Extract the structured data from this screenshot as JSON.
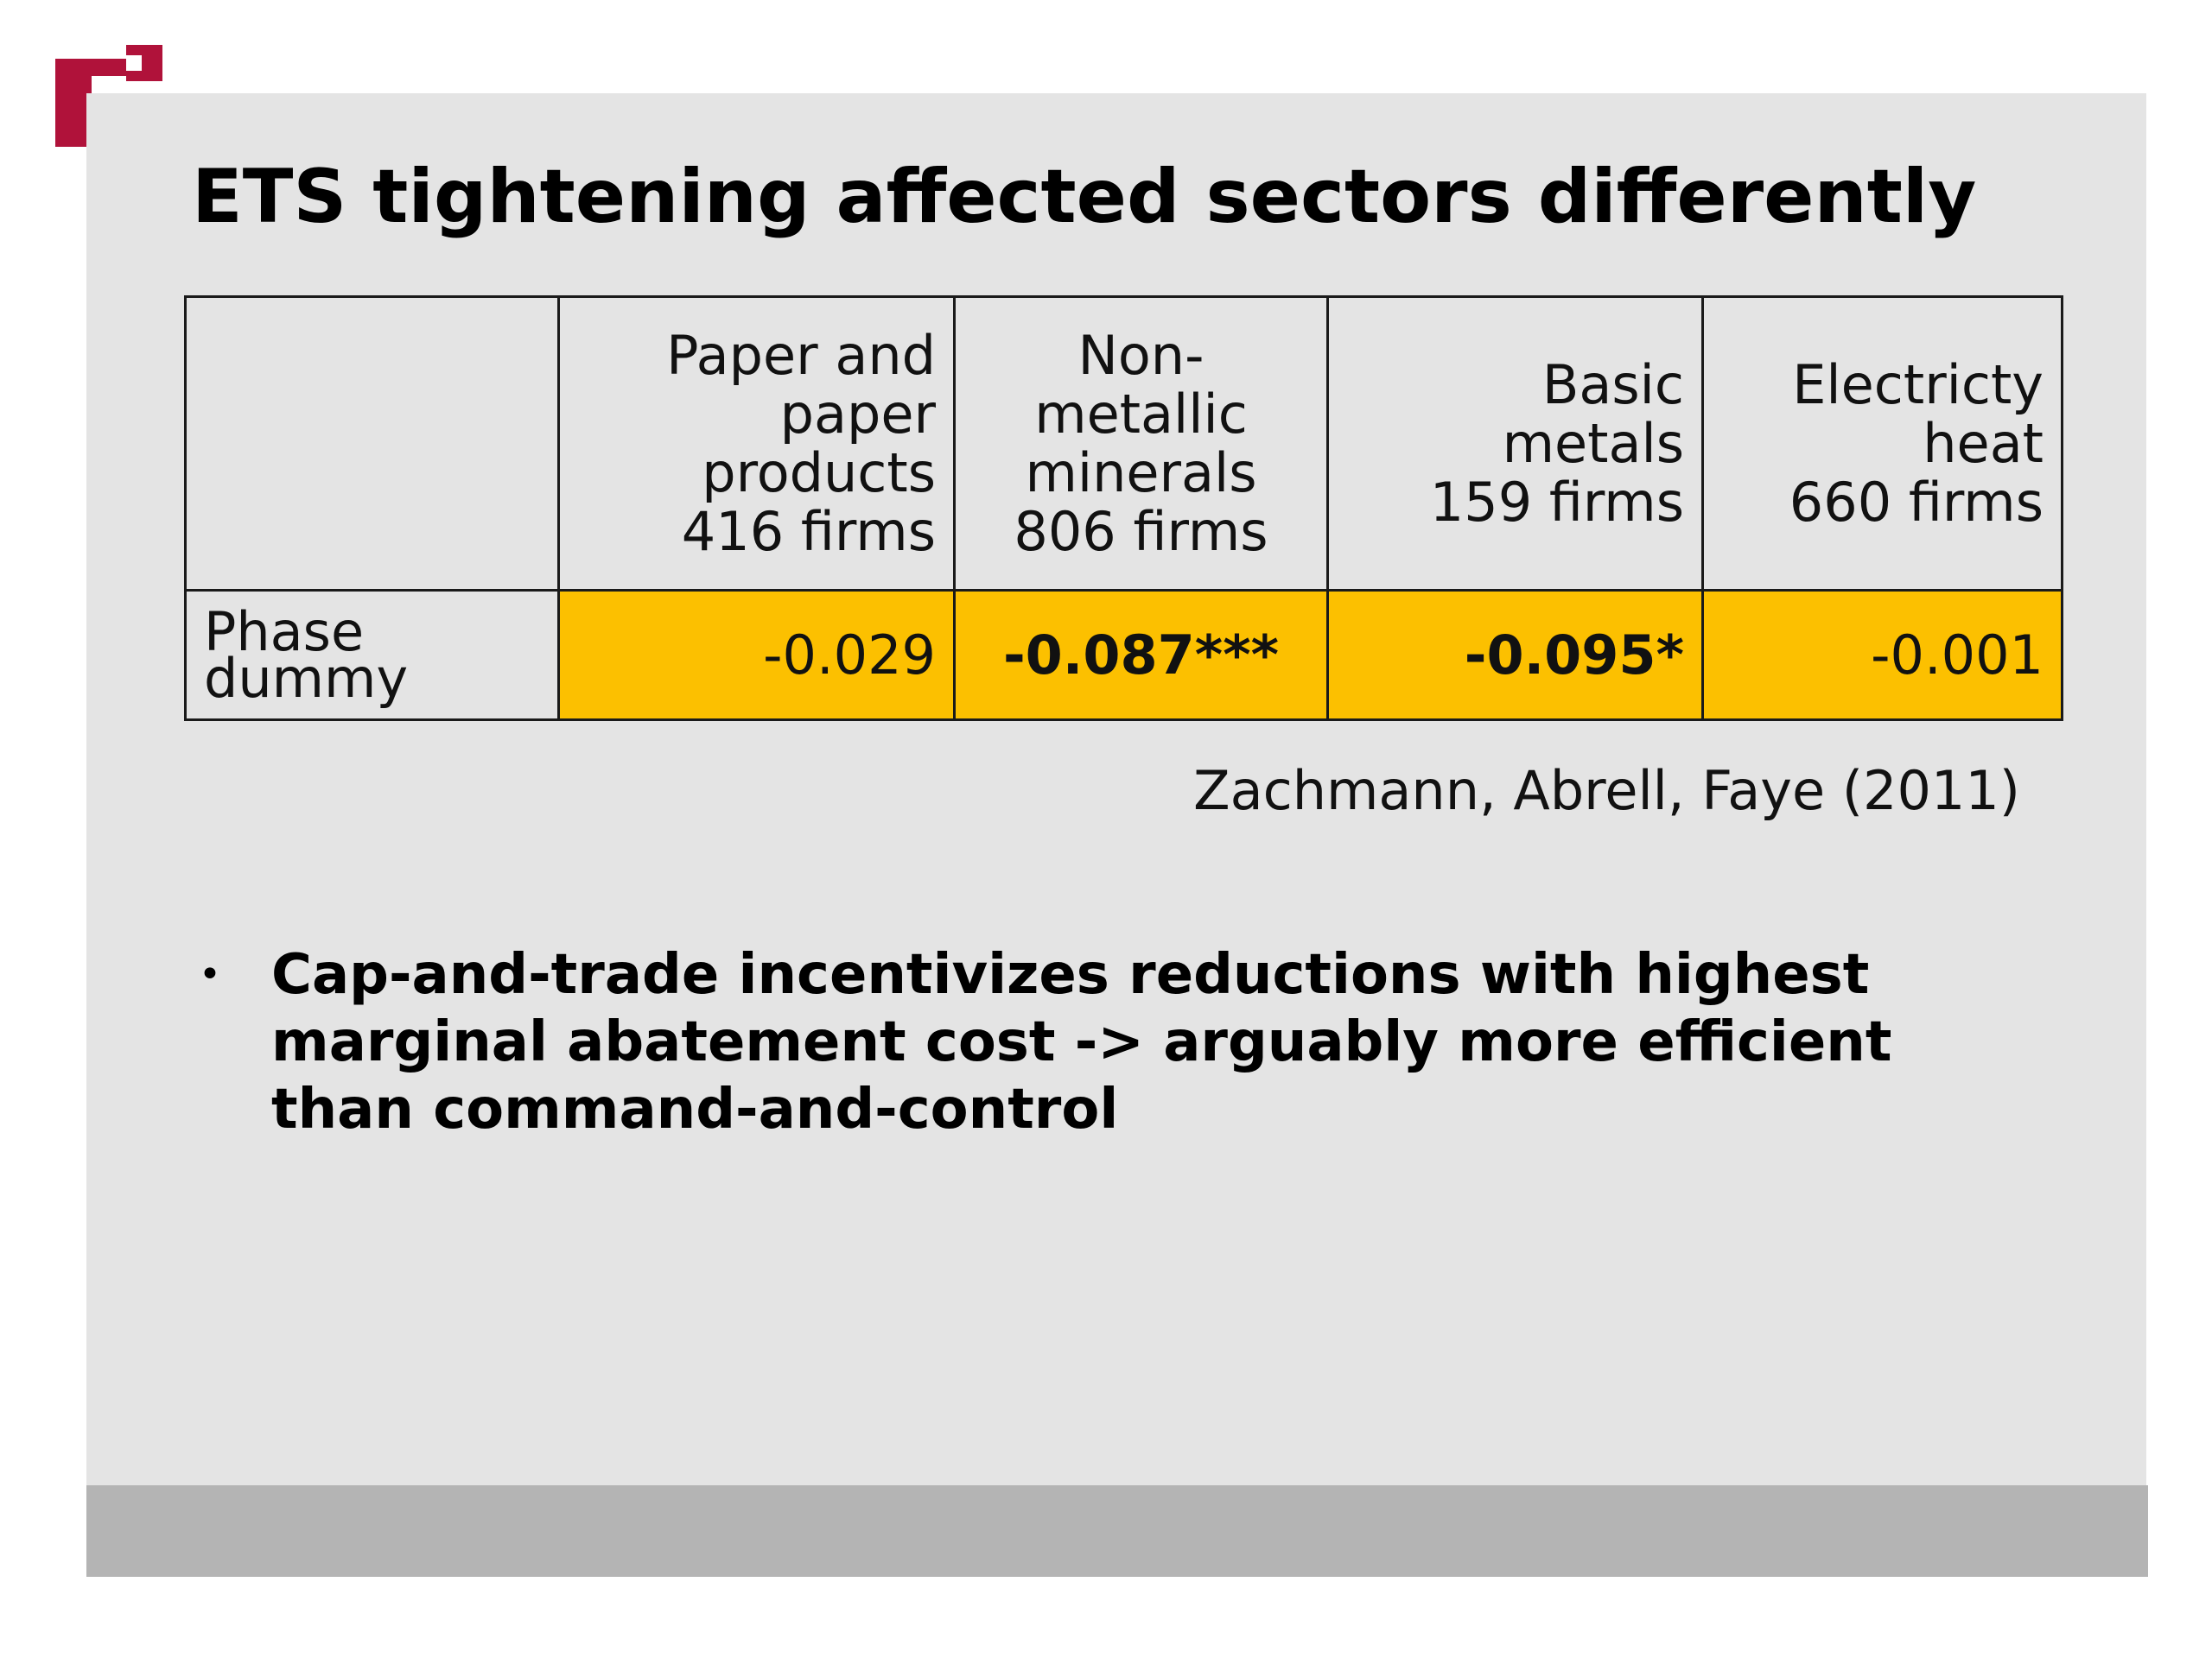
{
  "colors": {
    "slide_background": "#e4e4e4",
    "footer_band": "#b4b4b4",
    "highlight_cells": "#fcc000",
    "logo_red": "#b0123a"
  },
  "logo": {
    "icon": "brand-logo-icon"
  },
  "title": "ETS tightening affected sectors differently",
  "table": {
    "columns": [
      {
        "lines": [
          "Paper and",
          "paper",
          "products",
          "416 firms"
        ]
      },
      {
        "lines": [
          "Non-",
          "metallic",
          "minerals",
          "806 firms"
        ]
      },
      {
        "lines": [
          "Basic",
          "metals",
          "159 firms"
        ]
      },
      {
        "lines": [
          "Electricty",
          "heat",
          "660 firms"
        ]
      }
    ],
    "rows": [
      {
        "label": "Phase dummy",
        "values": [
          "-0.029",
          "-0.087***",
          "-0.095*",
          "-0.001"
        ]
      }
    ]
  },
  "citation": "Zachmann, Abrell, Faye (2011)",
  "bullets": [
    "Cap-and-trade incentivizes reductions with highest marginal abatement cost -> arguably more efficient than command-and-control"
  ]
}
